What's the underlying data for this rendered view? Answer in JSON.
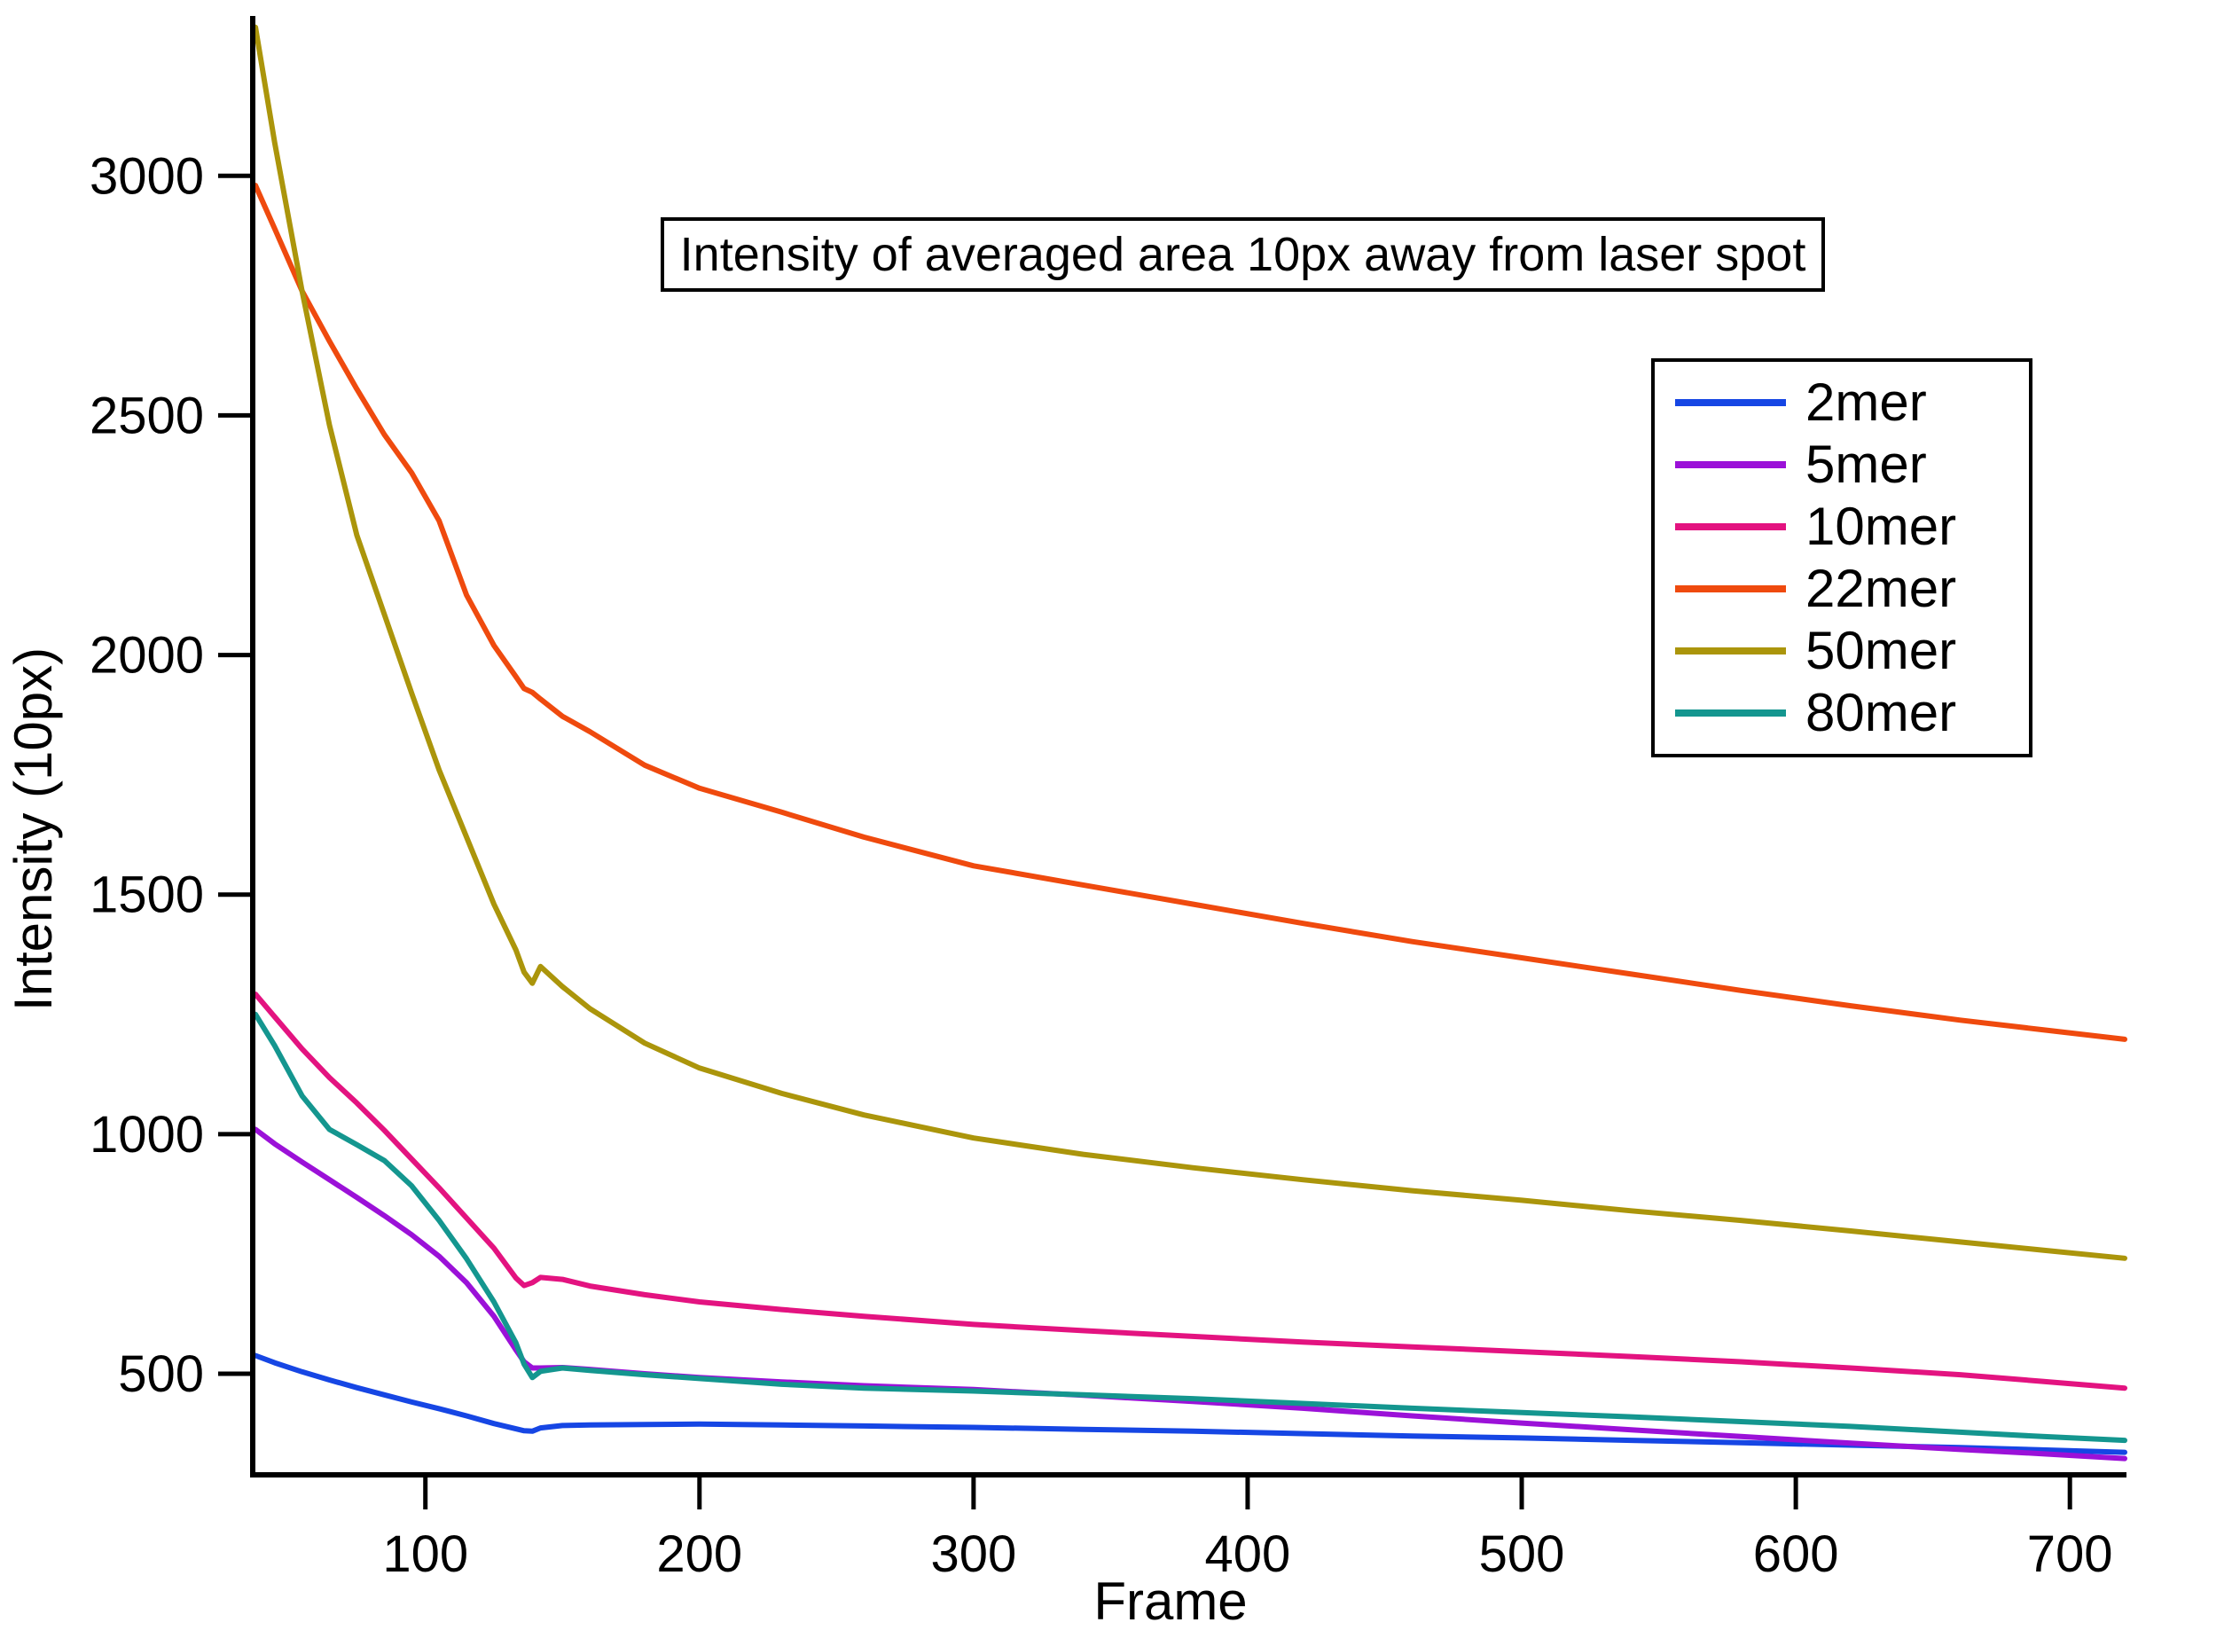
{
  "figure": {
    "title": "Intensity of averaged area 10px away from laser spot",
    "xlabel": "Frame",
    "ylabel": "Intensity (10px)"
  },
  "chart_data": {
    "type": "line",
    "title": "Intensity of averaged area 10px away from laser spot",
    "xlabel": "Frame",
    "ylabel": "Intensity (10px)",
    "xlim": [
      37,
      720
    ],
    "ylim": [
      289,
      3330
    ],
    "x_ticks": [
      100,
      200,
      300,
      400,
      500,
      600,
      700
    ],
    "y_ticks": [
      500,
      1000,
      1500,
      2000,
      2500,
      3000
    ],
    "grid": false,
    "legend_position": "upper right",
    "background_color": "#ffffff",
    "axis_color": "#000000",
    "x": [
      38,
      45,
      55,
      65,
      75,
      85,
      95,
      105,
      115,
      125,
      133,
      136,
      139,
      142,
      150,
      160,
      180,
      200,
      230,
      260,
      300,
      340,
      380,
      420,
      460,
      500,
      540,
      580,
      620,
      660,
      690,
      720
    ],
    "series": [
      {
        "name": "2mer",
        "color": "#1646E4",
        "values": [
          538,
          523,
          504,
          487,
          471,
          456,
          441,
          427,
          412,
          396,
          385,
          381,
          380,
          387,
          392,
          393,
          394,
          395,
          393,
          391,
          388,
          384,
          380,
          375,
          370,
          366,
          361,
          356,
          351,
          346,
          341,
          336
        ]
      },
      {
        "name": "5mer",
        "color": "#9B11D8",
        "values": [
          1010,
          980,
          942,
          905,
          868,
          830,
          790,
          745,
          690,
          620,
          550,
          525,
          512,
          512,
          513,
          509,
          500,
          492,
          483,
          475,
          467,
          455,
          442,
          428,
          412,
          397,
          383,
          369,
          355,
          342,
          333,
          323
        ]
      },
      {
        "name": "10mer",
        "color": "#E31380",
        "values": [
          1292,
          1245,
          1178,
          1118,
          1065,
          1008,
          948,
          888,
          825,
          762,
          700,
          684,
          690,
          701,
          697,
          683,
          665,
          650,
          634,
          620,
          603,
          590,
          578,
          566,
          556,
          546,
          536,
          525,
          512,
          498,
          484,
          470
        ]
      },
      {
        "name": "22mer",
        "color": "#EF4A0E",
        "values": [
          2980,
          2890,
          2760,
          2655,
          2555,
          2460,
          2380,
          2280,
          2125,
          2020,
          1955,
          1930,
          1922,
          1908,
          1872,
          1840,
          1770,
          1722,
          1672,
          1620,
          1560,
          1520,
          1480,
          1440,
          1402,
          1368,
          1334,
          1300,
          1268,
          1238,
          1218,
          1198
        ]
      },
      {
        "name": "50mer",
        "color": "#AB950B",
        "values": [
          3310,
          3070,
          2760,
          2480,
          2250,
          2085,
          1920,
          1760,
          1620,
          1480,
          1385,
          1338,
          1315,
          1350,
          1308,
          1262,
          1190,
          1138,
          1085,
          1040,
          992,
          958,
          930,
          905,
          882,
          862,
          840,
          820,
          798,
          775,
          758,
          741
        ]
      },
      {
        "name": "80mer",
        "color": "#14968F",
        "values": [
          1250,
          1185,
          1080,
          1010,
          978,
          945,
          892,
          820,
          740,
          650,
          565,
          520,
          492,
          505,
          512,
          507,
          498,
          490,
          478,
          470,
          464,
          456,
          448,
          438,
          428,
          419,
          410,
          400,
          390,
          378,
          369,
          361
        ]
      }
    ]
  }
}
